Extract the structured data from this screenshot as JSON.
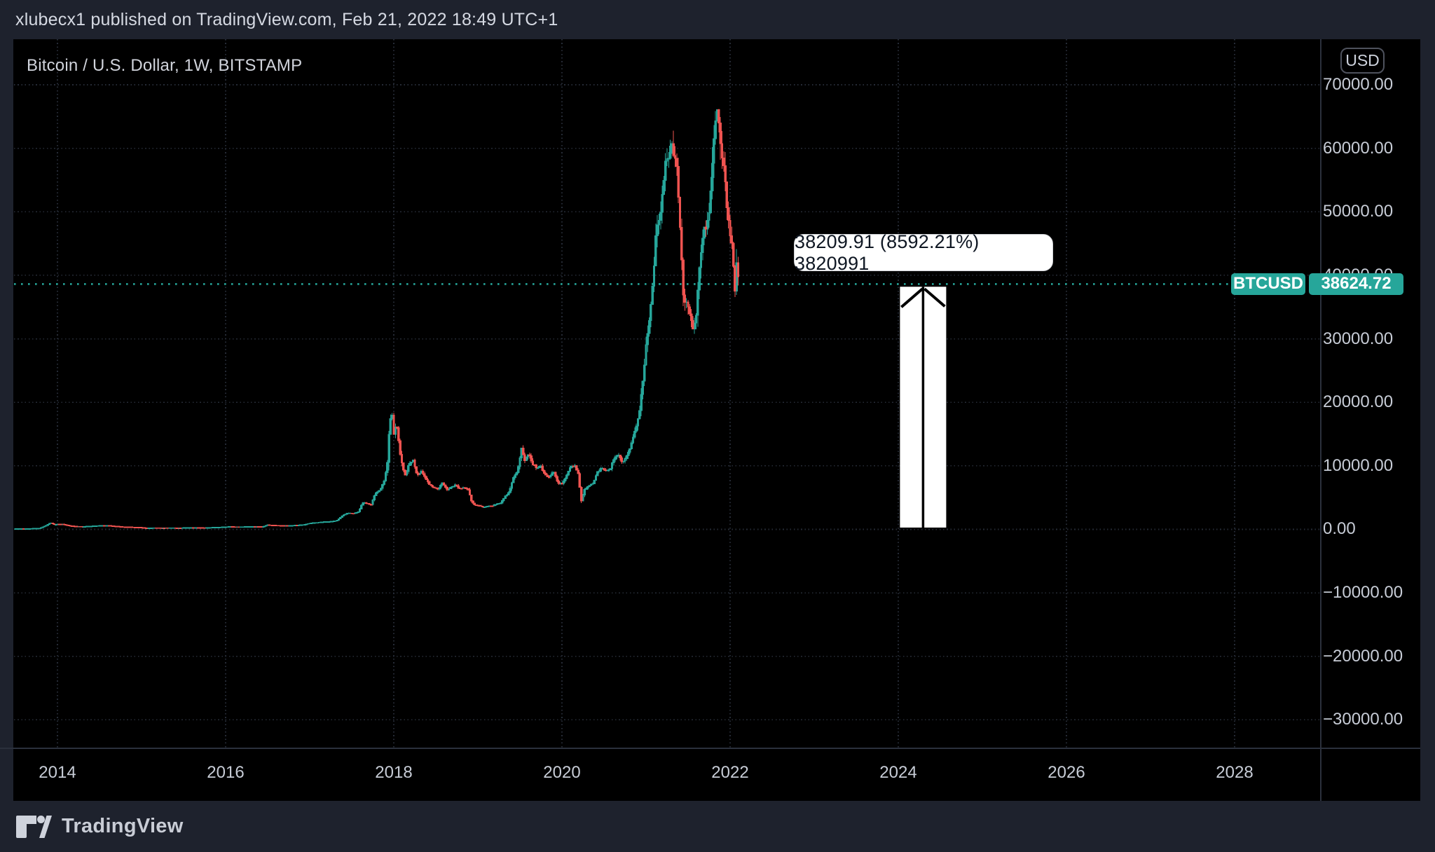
{
  "header": {
    "text": "xlubecx1 published on TradingView.com, Feb 21, 2022 18:49 UTC+1"
  },
  "chart": {
    "title": "Bitcoin / U.S. Dollar, 1W, BITSTAMP",
    "currency_button": "USD"
  },
  "tooltip": {
    "text": "38209.91 (8592.21%) 3820991"
  },
  "price_tag": {
    "symbol": "BTCUSD",
    "value": "38624.72"
  },
  "footer": {
    "brand": "TradingView"
  },
  "colors": {
    "up": "#26a69a",
    "down": "#ef5350",
    "price_line": "#26a69a",
    "grid": "#262b36",
    "frame": "#1e222d",
    "axis_text": "#c7ccd6",
    "arrow": "#ffffff"
  },
  "chart_data": {
    "type": "candlestick",
    "symbol": "BTCUSD",
    "exchange": "BITSTAMP",
    "timeframe": "1W",
    "title": "Bitcoin / U.S. Dollar, 1W, BITSTAMP",
    "last_price": 38624.72,
    "x_axis": {
      "ticks": [
        2014,
        2016,
        2018,
        2020,
        2022,
        2024,
        2026,
        2028
      ]
    },
    "y_axis": {
      "ticks": [
        70000,
        60000,
        50000,
        40000,
        30000,
        20000,
        10000,
        0,
        -10000,
        -20000,
        -30000
      ],
      "tick_step": 10000,
      "format": "two_decimals"
    },
    "series_start_year": 2013.5,
    "series_end_year": 2022.105,
    "price_path": [
      [
        2013.5,
        95
      ],
      [
        2013.6,
        105
      ],
      [
        2013.7,
        130
      ],
      [
        2013.8,
        200
      ],
      [
        2013.88,
        700
      ],
      [
        2013.92,
        1050
      ],
      [
        2013.96,
        750
      ],
      [
        2014.0,
        820
      ],
      [
        2014.06,
        830
      ],
      [
        2014.12,
        620
      ],
      [
        2014.2,
        480
      ],
      [
        2014.3,
        450
      ],
      [
        2014.4,
        500
      ],
      [
        2014.5,
        590
      ],
      [
        2014.6,
        600
      ],
      [
        2014.7,
        490
      ],
      [
        2014.8,
        380
      ],
      [
        2014.9,
        350
      ],
      [
        2014.97,
        320
      ],
      [
        2015.05,
        220
      ],
      [
        2015.15,
        245
      ],
      [
        2015.25,
        235
      ],
      [
        2015.35,
        240
      ],
      [
        2015.45,
        235
      ],
      [
        2015.55,
        260
      ],
      [
        2015.65,
        280
      ],
      [
        2015.75,
        235
      ],
      [
        2015.85,
        310
      ],
      [
        2015.95,
        360
      ],
      [
        2016.05,
        430
      ],
      [
        2016.15,
        400
      ],
      [
        2016.25,
        420
      ],
      [
        2016.35,
        455
      ],
      [
        2016.45,
        450
      ],
      [
        2016.5,
        700
      ],
      [
        2016.55,
        660
      ],
      [
        2016.65,
        610
      ],
      [
        2016.75,
        600
      ],
      [
        2016.85,
        640
      ],
      [
        2016.95,
        790
      ],
      [
        2017.0,
        970
      ],
      [
        2017.08,
        1060
      ],
      [
        2017.16,
        1180
      ],
      [
        2017.24,
        1250
      ],
      [
        2017.32,
        1350
      ],
      [
        2017.4,
        2300
      ],
      [
        2017.46,
        2600
      ],
      [
        2017.52,
        2500
      ],
      [
        2017.58,
        2750
      ],
      [
        2017.63,
        4250
      ],
      [
        2017.68,
        4050
      ],
      [
        2017.73,
        3900
      ],
      [
        2017.78,
        5600
      ],
      [
        2017.83,
        6100
      ],
      [
        2017.88,
        7400
      ],
      [
        2017.92,
        9800
      ],
      [
        2017.95,
        16500
      ],
      [
        2017.975,
        19000
      ],
      [
        2018.0,
        14800
      ],
      [
        2018.03,
        16800
      ],
      [
        2018.08,
        11500
      ],
      [
        2018.13,
        8300
      ],
      [
        2018.18,
        10200
      ],
      [
        2018.23,
        11000
      ],
      [
        2018.28,
        8400
      ],
      [
        2018.33,
        9100
      ],
      [
        2018.38,
        8000
      ],
      [
        2018.43,
        7000
      ],
      [
        2018.48,
        6600
      ],
      [
        2018.53,
        6400
      ],
      [
        2018.58,
        7400
      ],
      [
        2018.63,
        6300
      ],
      [
        2018.68,
        6600
      ],
      [
        2018.73,
        7000
      ],
      [
        2018.78,
        6400
      ],
      [
        2018.83,
        6500
      ],
      [
        2018.88,
        6400
      ],
      [
        2018.93,
        4200
      ],
      [
        2018.97,
        3800
      ],
      [
        2019.02,
        3700
      ],
      [
        2019.07,
        3500
      ],
      [
        2019.12,
        3650
      ],
      [
        2019.17,
        3700
      ],
      [
        2019.22,
        4000
      ],
      [
        2019.27,
        4150
      ],
      [
        2019.32,
        5100
      ],
      [
        2019.37,
        5800
      ],
      [
        2019.42,
        8100
      ],
      [
        2019.47,
        9100
      ],
      [
        2019.52,
        12800
      ],
      [
        2019.56,
        10800
      ],
      [
        2019.6,
        12000
      ],
      [
        2019.65,
        10300
      ],
      [
        2019.7,
        9700
      ],
      [
        2019.75,
        9900
      ],
      [
        2019.8,
        8500
      ],
      [
        2019.85,
        8300
      ],
      [
        2019.9,
        9200
      ],
      [
        2019.95,
        7300
      ],
      [
        2020.0,
        7300
      ],
      [
        2020.05,
        8300
      ],
      [
        2020.1,
        9900
      ],
      [
        2020.15,
        10100
      ],
      [
        2020.19,
        8900
      ],
      [
        2020.23,
        4500
      ],
      [
        2020.27,
        6300
      ],
      [
        2020.32,
        6900
      ],
      [
        2020.37,
        7300
      ],
      [
        2020.42,
        9000
      ],
      [
        2020.47,
        9700
      ],
      [
        2020.52,
        9200
      ],
      [
        2020.57,
        9400
      ],
      [
        2020.62,
        11200
      ],
      [
        2020.67,
        11700
      ],
      [
        2020.72,
        10500
      ],
      [
        2020.77,
        11500
      ],
      [
        2020.82,
        13100
      ],
      [
        2020.87,
        15600
      ],
      [
        2020.92,
        18500
      ],
      [
        2020.96,
        23000
      ],
      [
        2021.0,
        29000
      ],
      [
        2021.04,
        33000
      ],
      [
        2021.08,
        38500
      ],
      [
        2021.12,
        47000
      ],
      [
        2021.16,
        48500
      ],
      [
        2021.19,
        52500
      ],
      [
        2021.23,
        57500
      ],
      [
        2021.27,
        58000
      ],
      [
        2021.3,
        61500
      ],
      [
        2021.33,
        58500
      ],
      [
        2021.36,
        58000
      ],
      [
        2021.4,
        49000
      ],
      [
        2021.44,
        37000
      ],
      [
        2021.48,
        35500
      ],
      [
        2021.52,
        34000
      ],
      [
        2021.56,
        31800
      ],
      [
        2021.6,
        34200
      ],
      [
        2021.64,
        42000
      ],
      [
        2021.68,
        46500
      ],
      [
        2021.72,
        48000
      ],
      [
        2021.76,
        51000
      ],
      [
        2021.8,
        60000
      ],
      [
        2021.84,
        66500
      ],
      [
        2021.87,
        64500
      ],
      [
        2021.9,
        58000
      ],
      [
        2021.93,
        57200
      ],
      [
        2021.96,
        50500
      ],
      [
        2022.0,
        46500
      ],
      [
        2022.03,
        43500
      ],
      [
        2022.06,
        36500
      ],
      [
        2022.08,
        42500
      ],
      [
        2022.105,
        38600
      ]
    ],
    "annotations": {
      "arrow_drawing": {
        "shape": "arrow-up",
        "color": "#ffffff",
        "year_from": 2024.02,
        "year_to": 2024.57,
        "price_bottom": 280,
        "price_top": 38200
      },
      "label_text": "38209.91 (8592.21%) 3820991"
    }
  }
}
